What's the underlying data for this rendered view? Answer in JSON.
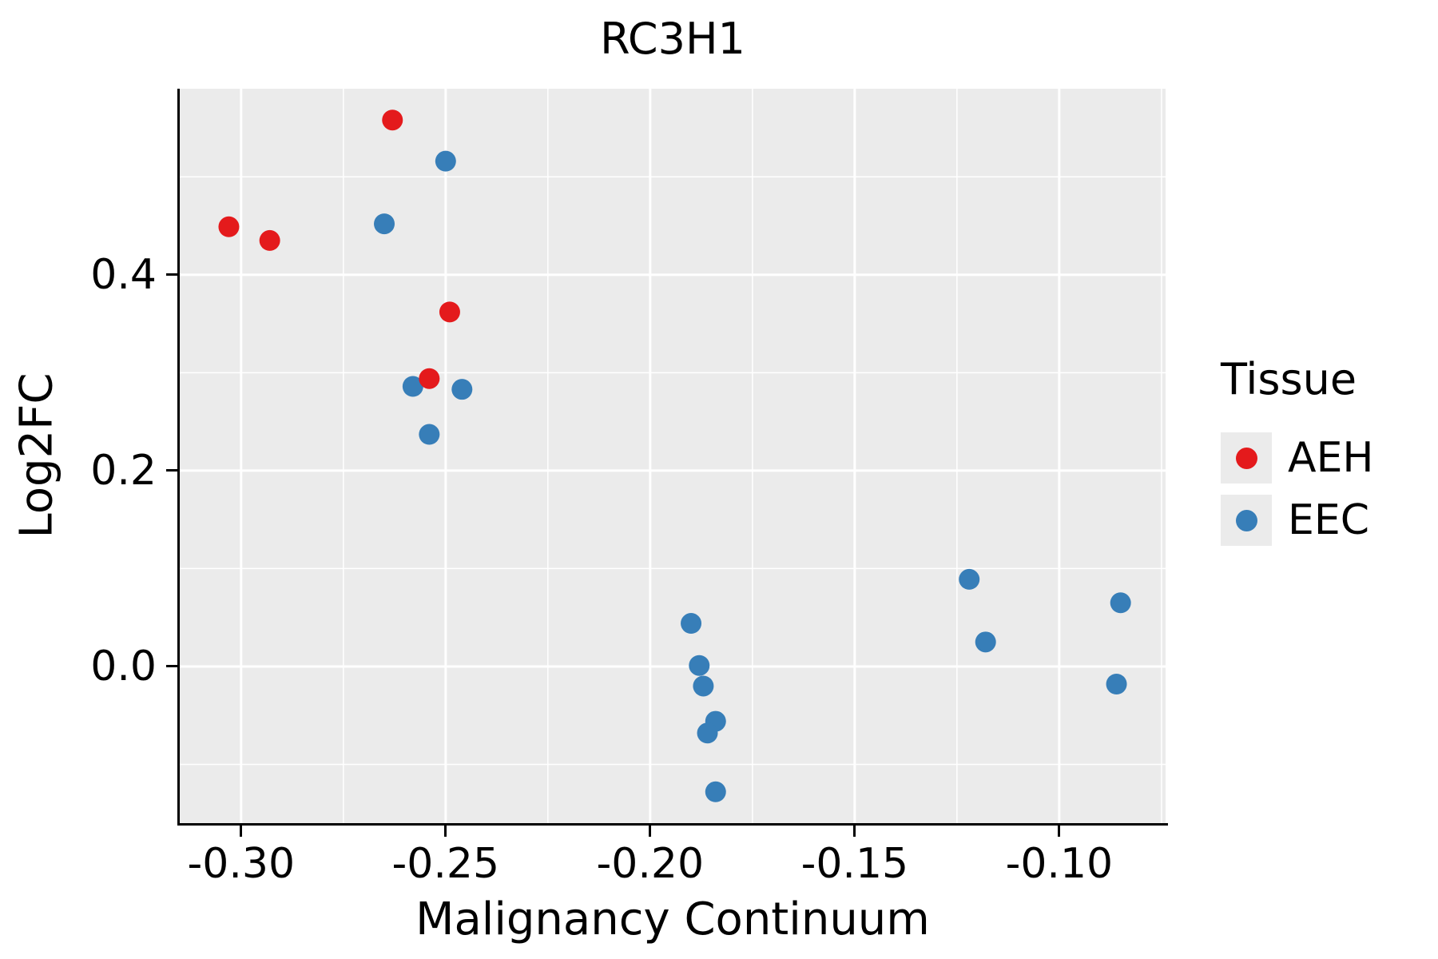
{
  "chart_data": {
    "type": "scatter",
    "title": "RC3H1",
    "xlabel": "Malignancy Continuum",
    "ylabel": "Log2FC",
    "xlim": [
      -0.315,
      -0.074
    ],
    "ylim": [
      -0.16,
      0.59
    ],
    "panel_bg": "#EBEBEB",
    "grid_color": "#FFFFFF",
    "axis_color": "#000000",
    "x_ticks": [
      {
        "value": -0.3,
        "label": "-0.30"
      },
      {
        "value": -0.25,
        "label": "-0.25"
      },
      {
        "value": -0.2,
        "label": "-0.20"
      },
      {
        "value": -0.15,
        "label": "-0.15"
      },
      {
        "value": -0.1,
        "label": "-0.10"
      }
    ],
    "y_ticks": [
      {
        "value": 0.0,
        "label": "0.0"
      },
      {
        "value": 0.2,
        "label": "0.2"
      },
      {
        "value": 0.4,
        "label": "0.4"
      }
    ],
    "x_minor": [
      -0.275,
      -0.225,
      -0.175,
      -0.125,
      -0.075
    ],
    "y_minor": [
      -0.1,
      0.1,
      0.3,
      0.5
    ],
    "legend_title": "Tissue",
    "legend_position": "right",
    "series": [
      {
        "name": "AEH",
        "color": "#E41A1C",
        "points": [
          [
            -0.263,
            0.558
          ],
          [
            -0.303,
            0.449
          ],
          [
            -0.293,
            0.435
          ],
          [
            -0.249,
            0.362
          ],
          [
            -0.254,
            0.294
          ]
        ]
      },
      {
        "name": "EEC",
        "color": "#377EB8",
        "points": [
          [
            -0.25,
            0.516
          ],
          [
            -0.265,
            0.452
          ],
          [
            -0.258,
            0.286
          ],
          [
            -0.246,
            0.283
          ],
          [
            -0.254,
            0.237
          ],
          [
            -0.19,
            0.044
          ],
          [
            -0.188,
            0.001
          ],
          [
            -0.187,
            -0.02
          ],
          [
            -0.184,
            -0.056
          ],
          [
            -0.186,
            -0.068
          ],
          [
            -0.184,
            -0.128
          ],
          [
            -0.122,
            0.089
          ],
          [
            -0.118,
            0.025
          ],
          [
            -0.085,
            0.065
          ],
          [
            -0.086,
            -0.018
          ]
        ]
      }
    ]
  }
}
